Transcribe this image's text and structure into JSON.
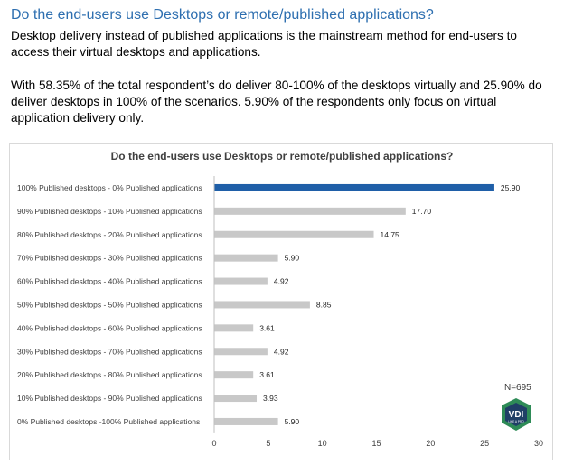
{
  "page": {
    "heading": "Do the end-users use Desktops or remote/published applications?",
    "paragraph1": "Desktop delivery instead of published applications is the mainstream method for end-users to access their virtual desktops and applications.",
    "paragraph2": "With 58.35% of the total respondent’s do deliver 80-100% of the desktops virtually and 25.90% do deliver desktops in 100% of the scenarios.  5.90% of the respondents only focus on virtual application delivery only."
  },
  "badge": {
    "n_label": "N=695",
    "logo_text": "VDI",
    "logo_subtext": "LIKE A PRO"
  },
  "colors": {
    "highlight": "#1f5fa8",
    "bar": "#c8c8c8",
    "heading": "#2e6fb0",
    "logo_green": "#2e8b57",
    "logo_dark": "#1f3f66"
  },
  "chart_data": {
    "type": "bar",
    "orientation": "horizontal",
    "title": "Do the end-users use Desktops or remote/published applications?",
    "categories": [
      "100% Published desktops - 0% Published applications",
      "90% Published desktops - 10% Published applications",
      "80% Published desktops - 20% Published applications",
      "70% Published desktops - 30% Published applications",
      "60% Published desktops - 40% Published applications",
      "50% Published desktops - 50% Published applications",
      "40% Published desktops - 60% Published applications",
      "30% Published desktops - 70% Published applications",
      "20% Published desktops - 80% Published applications",
      "10% Published desktops - 90% Published applications",
      "0% Published desktops -100% Published applications"
    ],
    "values": [
      25.9,
      17.7,
      14.75,
      5.9,
      4.92,
      8.85,
      3.61,
      4.92,
      3.61,
      3.93,
      5.9
    ],
    "value_labels": [
      "25.90",
      "17.70",
      "14.75",
      "5.90",
      "4.92",
      "8.85",
      "3.61",
      "4.92",
      "3.61",
      "3.93",
      "5.90"
    ],
    "highlight_index": 0,
    "xlim": [
      0,
      30
    ],
    "xticks": [
      "0",
      "5",
      "10",
      "15",
      "20",
      "25",
      "30"
    ],
    "grid": false,
    "legend": "none"
  }
}
